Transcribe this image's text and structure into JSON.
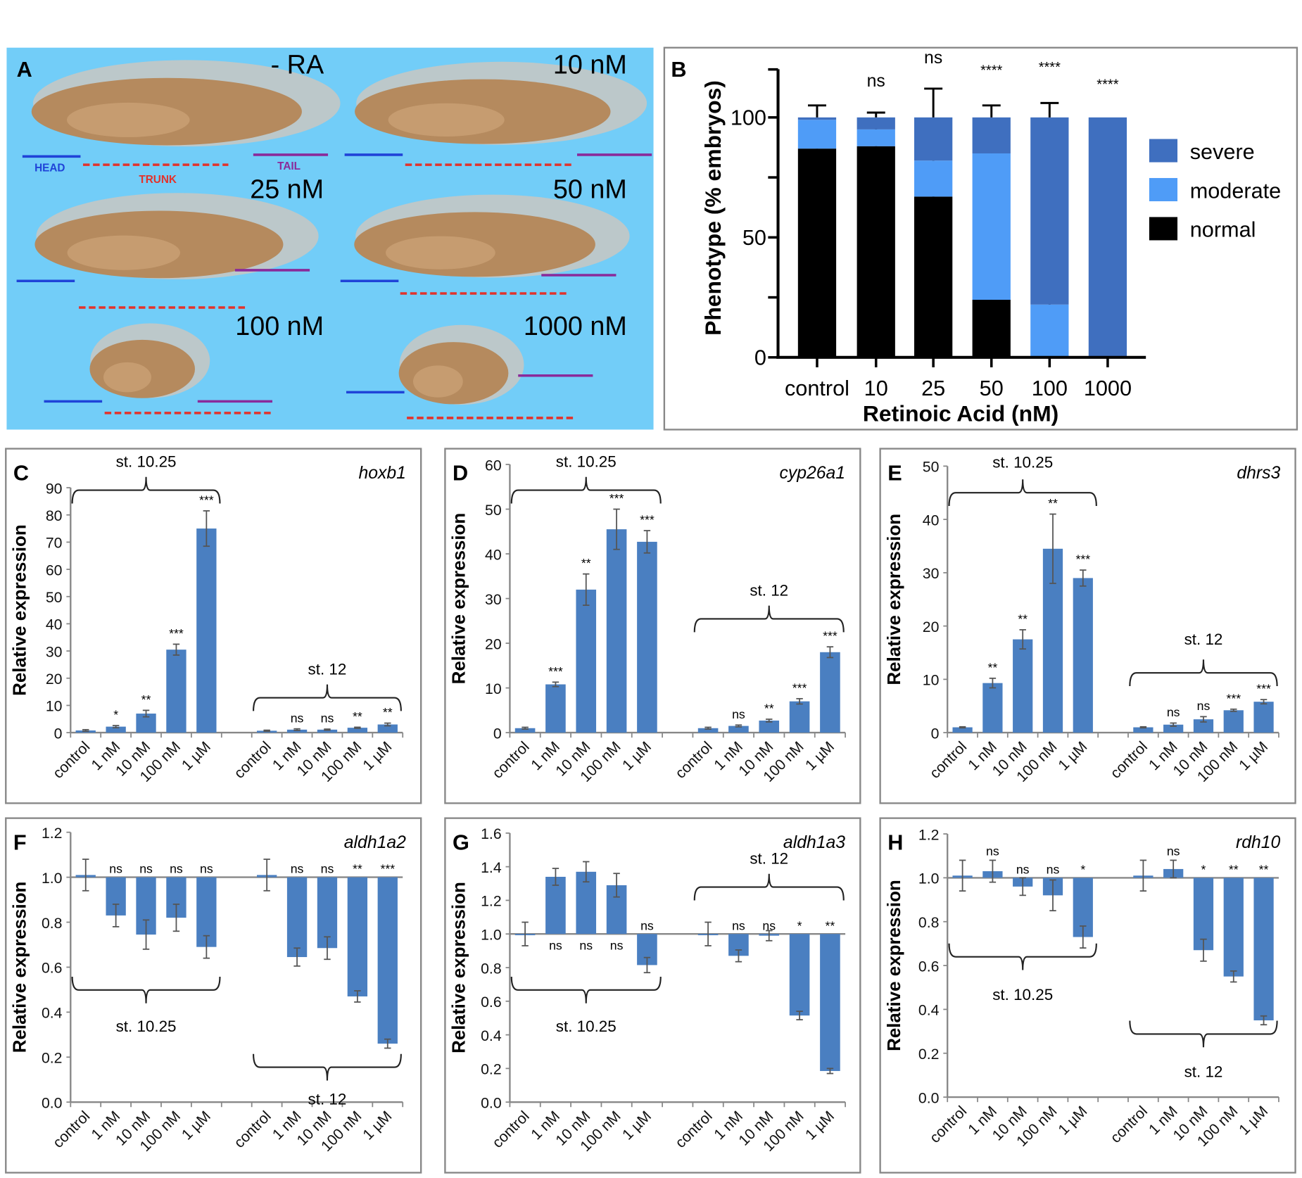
{
  "colors": {
    "expr_bar": "#4a7fc1",
    "severe": "#3f6fbf",
    "moderate": "#4f9cf7",
    "normal": "#000000",
    "panel_a_bg": "#72cdf8",
    "head_line": "#1f43d8",
    "trunk_line": "#e3322b",
    "tail_line": "#8a2a9a"
  },
  "panel_a": {
    "letter": "A",
    "conditions": [
      "- RA",
      "10 nM",
      "25 nM",
      "50 nM",
      "100 nM",
      "1000 nM"
    ],
    "region_labels": {
      "head": "HEAD",
      "trunk": "TRUNK",
      "tail": "TAIL"
    }
  },
  "chart_data": [
    {
      "panel": "B",
      "type": "bar",
      "stacked": true,
      "categories": [
        "control",
        "10",
        "25",
        "50",
        "100",
        "1000"
      ],
      "xlabel": "Retinoic Acid (nM)",
      "ylabel": "Phenotype (% embryos)",
      "ylim": [
        0,
        120
      ],
      "yticks": [
        0,
        50,
        100
      ],
      "series": [
        {
          "name": "normal",
          "values": [
            87,
            88,
            67,
            24,
            0,
            0
          ],
          "errors": [
            7,
            3,
            14,
            13,
            0,
            0
          ]
        },
        {
          "name": "moderate",
          "values": [
            12,
            7,
            15,
            61,
            22,
            0
          ],
          "errors": [
            0,
            3,
            2,
            12,
            6,
            0
          ]
        },
        {
          "name": "severe",
          "values": [
            1,
            5,
            18,
            15,
            78,
            100
          ],
          "errors": [
            5,
            2,
            12,
            5,
            6,
            0
          ]
        }
      ],
      "significance": [
        "",
        "ns",
        "ns",
        "****",
        "****",
        "****"
      ],
      "legend": [
        "severe",
        "moderate",
        "normal"
      ],
      "legend_placement": "right"
    },
    {
      "panel": "C",
      "gene": "hoxb1",
      "type": "bar",
      "ylabel": "Relative expression",
      "ylim": [
        0,
        90
      ],
      "yticks": [
        0,
        10,
        20,
        30,
        40,
        50,
        60,
        70,
        80,
        90
      ],
      "categories": [
        "control",
        "1 nM",
        "10 nM",
        "100 nM",
        "1 µM"
      ],
      "groups": [
        {
          "label": "st. 10.25",
          "values": [
            0.8,
            2.2,
            7,
            30.5,
            75
          ],
          "errors": [
            0.3,
            0.4,
            1.2,
            2,
            6.5
          ],
          "significance": [
            "",
            "*",
            "**",
            "***",
            "***"
          ]
        },
        {
          "label": "st. 12",
          "values": [
            0.7,
            1.1,
            1.1,
            1.8,
            3
          ],
          "errors": [
            0.2,
            0.3,
            0.2,
            0.2,
            0.5
          ],
          "significance": [
            "",
            "ns",
            "ns",
            "**",
            "**"
          ]
        }
      ]
    },
    {
      "panel": "D",
      "gene": "cyp26a1",
      "type": "bar",
      "ylabel": "Relative expression",
      "ylim": [
        0,
        60
      ],
      "yticks": [
        0,
        10,
        20,
        30,
        40,
        50,
        60
      ],
      "categories": [
        "control",
        "1 nM",
        "10 nM",
        "100 nM",
        "1 µM"
      ],
      "groups": [
        {
          "label": "st. 10.25",
          "values": [
            1,
            10.8,
            32,
            45.5,
            42.7
          ],
          "errors": [
            0.2,
            0.5,
            3.5,
            4.5,
            2.5
          ],
          "significance": [
            "",
            "***",
            "**",
            "***",
            "***"
          ]
        },
        {
          "label": "st. 12",
          "values": [
            1,
            1.5,
            2.7,
            7,
            18
          ],
          "errors": [
            0.2,
            0.2,
            0.3,
            0.6,
            1.2
          ],
          "significance": [
            "",
            "ns",
            "**",
            "***",
            "***"
          ]
        }
      ]
    },
    {
      "panel": "E",
      "gene": "dhrs3",
      "type": "bar",
      "ylabel": "Relative expression",
      "ylim": [
        0,
        50
      ],
      "yticks": [
        0,
        10,
        20,
        30,
        40,
        50
      ],
      "categories": [
        "control",
        "1 nM",
        "10 nM",
        "100 nM",
        "1 µM"
      ],
      "groups": [
        {
          "label": "st. 10.25",
          "values": [
            1,
            9.3,
            17.5,
            34.5,
            29
          ],
          "errors": [
            0.1,
            0.9,
            1.8,
            6.5,
            1.5
          ],
          "significance": [
            "",
            "**",
            "**",
            "**",
            "***"
          ]
        },
        {
          "label": "st. 12",
          "values": [
            1,
            1.5,
            2.5,
            4.2,
            5.8
          ],
          "errors": [
            0.1,
            0.3,
            0.5,
            0.2,
            0.4
          ],
          "significance": [
            "",
            "ns",
            "ns",
            "***",
            "***"
          ]
        }
      ]
    },
    {
      "panel": "F",
      "gene": "aldh1a2",
      "type": "bar",
      "ylabel": "Relative expression",
      "baseline": 1.0,
      "ylim": [
        0,
        1.2
      ],
      "yticks": [
        0.0,
        0.2,
        0.4,
        0.6,
        0.8,
        1.0,
        1.2
      ],
      "categories": [
        "control",
        "1 nM",
        "10 nM",
        "100 nM",
        "1 µM"
      ],
      "groups": [
        {
          "label": "st. 10.25",
          "values": [
            1.01,
            0.83,
            0.745,
            0.82,
            0.69
          ],
          "errors": [
            0.07,
            0.05,
            0.065,
            0.06,
            0.05
          ],
          "significance": [
            "",
            "ns",
            "ns",
            "ns",
            "ns"
          ]
        },
        {
          "label": "st. 12",
          "values": [
            1.01,
            0.645,
            0.685,
            0.47,
            0.26
          ],
          "errors": [
            0.07,
            0.04,
            0.05,
            0.025,
            0.02
          ],
          "significance": [
            "",
            "ns",
            "ns",
            "**",
            "***"
          ]
        }
      ]
    },
    {
      "panel": "G",
      "gene": "aldh1a3",
      "type": "bar",
      "ylabel": "Relative expression",
      "baseline": 1.0,
      "ylim": [
        0,
        1.6
      ],
      "yticks": [
        0.0,
        0.2,
        0.4,
        0.6,
        0.8,
        1.0,
        1.2,
        1.4,
        1.6
      ],
      "categories": [
        "control",
        "1 nM",
        "10 nM",
        "100 nM",
        "1 µM"
      ],
      "groups": [
        {
          "label": "st. 10.25",
          "values": [
            1.0,
            1.34,
            1.37,
            1.29,
            0.815
          ],
          "errors": [
            0.07,
            0.05,
            0.06,
            0.07,
            0.045
          ],
          "significance": [
            "",
            "ns",
            "ns",
            "ns",
            "ns"
          ]
        },
        {
          "label": "st. 12",
          "values": [
            1.0,
            0.87,
            0.99,
            0.515,
            0.185
          ],
          "errors": [
            0.07,
            0.035,
            0.03,
            0.025,
            0.015
          ],
          "significance": [
            "",
            "ns",
            "ns",
            "*",
            "**"
          ]
        }
      ]
    },
    {
      "panel": "H",
      "gene": "rdh10",
      "type": "bar",
      "ylabel": "Relative expression",
      "baseline": 1.0,
      "ylim": [
        0,
        1.2
      ],
      "yticks": [
        0.0,
        0.2,
        0.4,
        0.6,
        0.8,
        1.0,
        1.2
      ],
      "categories": [
        "control",
        "1 nM",
        "10 nM",
        "100 nM",
        "1 µM"
      ],
      "groups": [
        {
          "label": "st. 10.25",
          "values": [
            1.01,
            1.03,
            0.96,
            0.92,
            0.73
          ],
          "errors": [
            0.07,
            0.05,
            0.04,
            0.07,
            0.05
          ],
          "significance": [
            "",
            "ns",
            "ns",
            "ns",
            "*"
          ]
        },
        {
          "label": "st. 12",
          "values": [
            1.01,
            1.04,
            0.67,
            0.55,
            0.35
          ],
          "errors": [
            0.07,
            0.04,
            0.05,
            0.025,
            0.02
          ],
          "significance": [
            "",
            "ns",
            "*",
            "**",
            "**"
          ]
        }
      ]
    }
  ]
}
